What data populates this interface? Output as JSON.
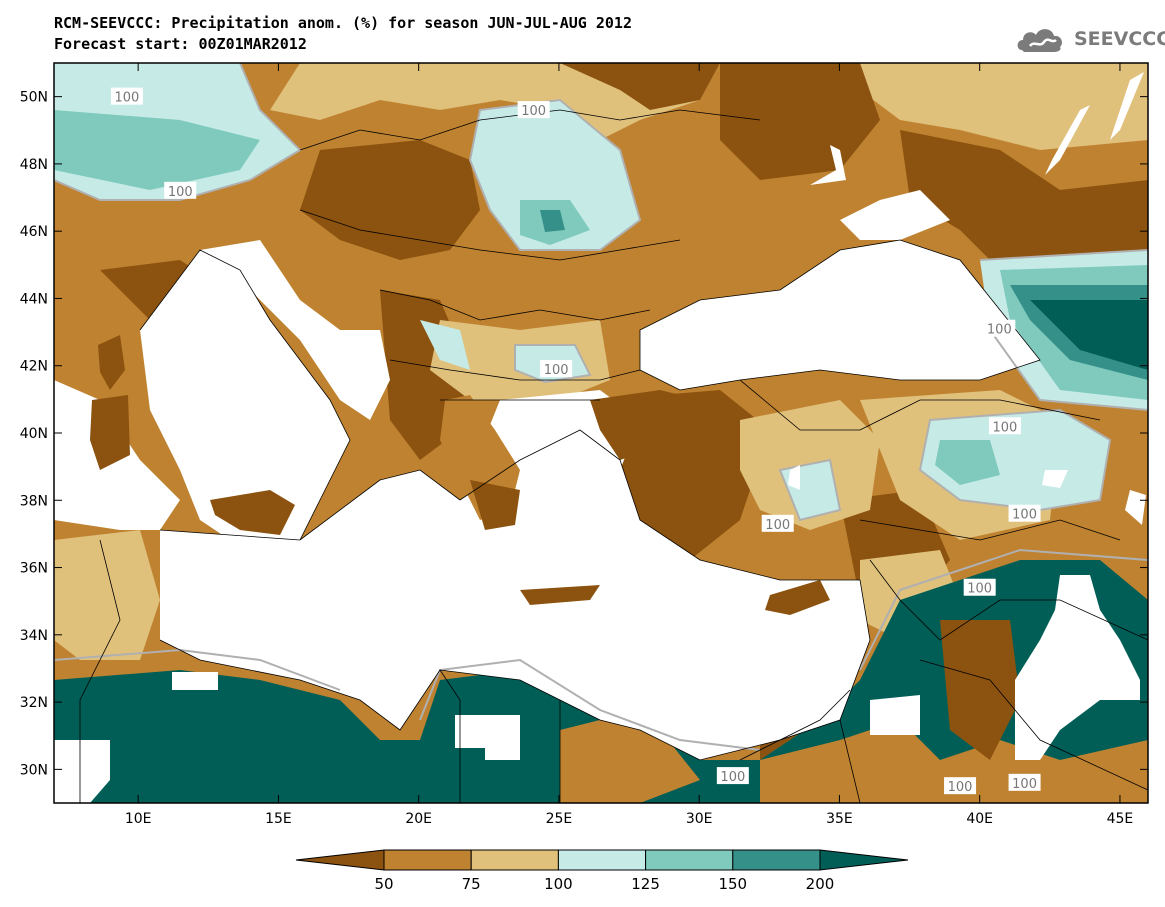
{
  "title": {
    "line1": "RCM-SEEVCCC: Precipitation anom. (%) for season JUN-JUL-AUG 2012",
    "line2": "Forecast start: 00Z01MAR2012"
  },
  "logo": {
    "text": "SEEVCCC",
    "icon": "cloud-icon"
  },
  "map": {
    "lon_range": [
      7,
      46
    ],
    "lat_range": [
      29,
      51
    ],
    "x_ticks": [
      {
        "value": 10,
        "label": "10E"
      },
      {
        "value": 15,
        "label": "15E"
      },
      {
        "value": 20,
        "label": "20E"
      },
      {
        "value": 25,
        "label": "25E"
      },
      {
        "value": 30,
        "label": "30E"
      },
      {
        "value": 35,
        "label": "35E"
      },
      {
        "value": 40,
        "label": "40E"
      },
      {
        "value": 45,
        "label": "45E"
      }
    ],
    "y_ticks": [
      {
        "value": 50,
        "label": "50N"
      },
      {
        "value": 48,
        "label": "48N"
      },
      {
        "value": 46,
        "label": "46N"
      },
      {
        "value": 44,
        "label": "44N"
      },
      {
        "value": 42,
        "label": "42N"
      },
      {
        "value": 40,
        "label": "40N"
      },
      {
        "value": 38,
        "label": "38N"
      },
      {
        "value": 36,
        "label": "36N"
      },
      {
        "value": 34,
        "label": "34N"
      },
      {
        "value": 32,
        "label": "32N"
      },
      {
        "value": 30,
        "label": "30N"
      }
    ],
    "contour_labels": [
      {
        "text": "100",
        "lon": 9.6,
        "lat": 50.0
      },
      {
        "text": "100",
        "lon": 11.5,
        "lat": 47.2
      },
      {
        "text": "100",
        "lon": 24.1,
        "lat": 49.6
      },
      {
        "text": "100",
        "lon": 24.9,
        "lat": 41.9
      },
      {
        "text": "100",
        "lon": 40.7,
        "lat": 43.1
      },
      {
        "text": "100",
        "lon": 40.9,
        "lat": 40.2
      },
      {
        "text": "100",
        "lon": 32.8,
        "lat": 37.3
      },
      {
        "text": "100",
        "lon": 41.6,
        "lat": 37.6
      },
      {
        "text": "100",
        "lon": 40.0,
        "lat": 35.4
      },
      {
        "text": "100",
        "lon": 31.2,
        "lat": 29.8
      },
      {
        "text": "100",
        "lon": 39.3,
        "lat": 29.5
      },
      {
        "text": "100",
        "lon": 41.6,
        "lat": 29.6
      }
    ],
    "colors": {
      "land_below_50": "#8c520f",
      "b50_75": "#bf8230",
      "b75_100": "#e0c17c",
      "b100_125": "#c6ebe6",
      "b125_150": "#7fcabd",
      "b150_200": "#359089",
      "above_200": "#005e57",
      "sea": "#ffffff",
      "contour_100": "#b0b0b0"
    }
  },
  "colorbar": {
    "labels": [
      "50",
      "75",
      "100",
      "125",
      "150",
      "200"
    ],
    "colors": [
      "#8c520f",
      "#bf8230",
      "#e0c17c",
      "#c6ebe6",
      "#7fcabd",
      "#359089",
      "#005e57"
    ]
  }
}
